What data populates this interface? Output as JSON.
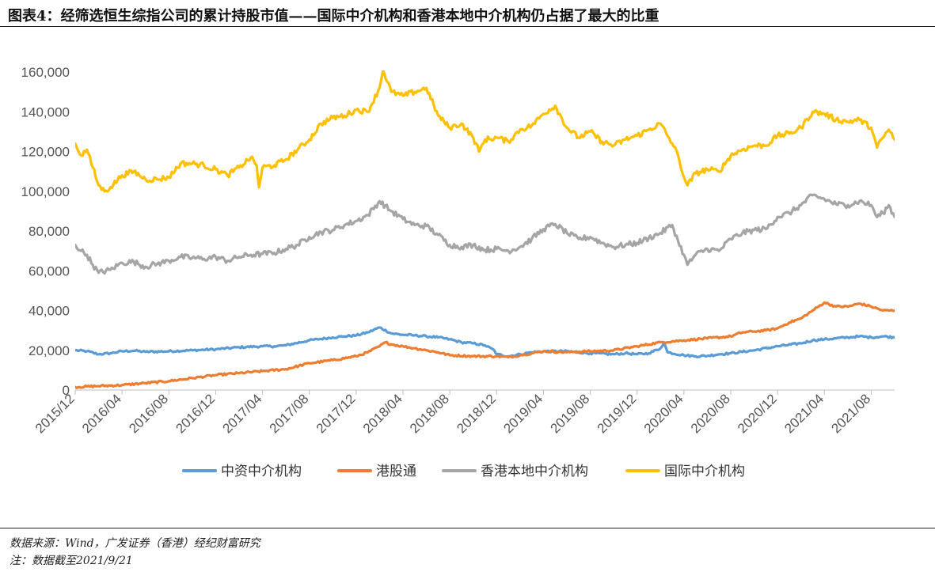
{
  "header": {
    "title": "图表4：经筛选恒生综指公司的累计持股市值——国际中介机构和香港本地中介机构仍占据了最大的比重"
  },
  "footer": {
    "source": "数据来源：Wind，广发证券（香港）经纪财富研究",
    "date_note": "注：数据截至2021/9/21"
  },
  "colors": {
    "chinese_brokers": "#5B9BD5",
    "stock_connect": "#ED7D31",
    "hk_local_brokers": "#A5A5A5",
    "international_brokers": "#FFC000"
  },
  "chart_data": {
    "type": "line",
    "title": "",
    "xlabel": "",
    "ylabel": "",
    "ylim": [
      0,
      160000
    ],
    "yticks": [
      0,
      20000,
      40000,
      60000,
      80000,
      100000,
      120000,
      140000,
      160000
    ],
    "ytick_labels": [
      "0",
      "20,000",
      "40,000",
      "60,000",
      "80,000",
      "100,000",
      "120,000",
      "140,000",
      "160,000"
    ],
    "xlim": [
      0,
      70
    ],
    "xticks": [
      0,
      4,
      8,
      12,
      16,
      20,
      24,
      28,
      32,
      36,
      40,
      44,
      48,
      52,
      56,
      60,
      64,
      68
    ],
    "xtick_labels": [
      "2015/12",
      "2016/04",
      "2016/08",
      "2016/12",
      "2017/04",
      "2017/08",
      "2017/12",
      "2018/04",
      "2018/08",
      "2018/12",
      "2019/04",
      "2019/08",
      "2019/12",
      "2020/04",
      "2020/08",
      "2020/12",
      "2021/04",
      "2021/08"
    ],
    "x_unit": "months since 2015/12",
    "legend_position": "bottom",
    "series": [
      {
        "name": "中资中介机构",
        "color": "#5B9BD5",
        "points": [
          [
            0,
            20000
          ],
          [
            1,
            19500
          ],
          [
            2,
            18000
          ],
          [
            3,
            18500
          ],
          [
            4,
            19500
          ],
          [
            5,
            19800
          ],
          [
            6,
            19200
          ],
          [
            8,
            19500
          ],
          [
            10,
            20000
          ],
          [
            12,
            20500
          ],
          [
            14,
            21500
          ],
          [
            16,
            22000
          ],
          [
            17,
            22000
          ],
          [
            18,
            22500
          ],
          [
            20,
            25000
          ],
          [
            22,
            26500
          ],
          [
            23,
            27000
          ],
          [
            24,
            27500
          ],
          [
            25,
            29000
          ],
          [
            26,
            31500
          ],
          [
            27,
            28500
          ],
          [
            28,
            27800
          ],
          [
            29,
            27500
          ],
          [
            30,
            27000
          ],
          [
            31,
            26500
          ],
          [
            32,
            25500
          ],
          [
            33,
            24000
          ],
          [
            34,
            23500
          ],
          [
            35,
            22500
          ],
          [
            35.8,
            20000
          ],
          [
            36,
            18000
          ],
          [
            37,
            17000
          ],
          [
            38,
            18000
          ],
          [
            39,
            19000
          ],
          [
            40,
            19500
          ],
          [
            42,
            19500
          ],
          [
            44,
            18500
          ],
          [
            46,
            18000
          ],
          [
            47,
            18500
          ],
          [
            48,
            18000
          ],
          [
            49,
            18500
          ],
          [
            50,
            21000
          ],
          [
            50.3,
            24000
          ],
          [
            50.6,
            19000
          ],
          [
            52,
            17500
          ],
          [
            53,
            17000
          ],
          [
            54,
            17200
          ],
          [
            55,
            18000
          ],
          [
            56,
            18500
          ],
          [
            58,
            20000
          ],
          [
            60,
            22000
          ],
          [
            62,
            23500
          ],
          [
            63,
            25000
          ],
          [
            64,
            25500
          ],
          [
            66,
            26500
          ],
          [
            67,
            27000
          ],
          [
            68,
            26500
          ],
          [
            69,
            27000
          ],
          [
            70,
            26500
          ]
        ]
      },
      {
        "name": "港股通",
        "color": "#ED7D31",
        "points": [
          [
            0,
            1500
          ],
          [
            2,
            2000
          ],
          [
            4,
            2500
          ],
          [
            6,
            3500
          ],
          [
            8,
            4500
          ],
          [
            10,
            6000
          ],
          [
            12,
            7500
          ],
          [
            14,
            8500
          ],
          [
            16,
            9500
          ],
          [
            18,
            10500
          ],
          [
            20,
            13500
          ],
          [
            22,
            15000
          ],
          [
            24,
            17000
          ],
          [
            25,
            19000
          ],
          [
            26,
            22000
          ],
          [
            26.5,
            24000
          ],
          [
            27,
            23000
          ],
          [
            28,
            22000
          ],
          [
            29,
            21000
          ],
          [
            30,
            20000
          ],
          [
            31,
            19000
          ],
          [
            32,
            17500
          ],
          [
            34,
            17000
          ],
          [
            36,
            17000
          ],
          [
            37,
            16500
          ],
          [
            38,
            17500
          ],
          [
            40,
            19500
          ],
          [
            42,
            19000
          ],
          [
            44,
            19500
          ],
          [
            46,
            20000
          ],
          [
            48,
            22000
          ],
          [
            50,
            24000
          ],
          [
            52,
            25000
          ],
          [
            54,
            26000
          ],
          [
            56,
            27000
          ],
          [
            57,
            29000
          ],
          [
            58,
            29500
          ],
          [
            59,
            30000
          ],
          [
            60,
            31000
          ],
          [
            61,
            34000
          ],
          [
            62,
            36000
          ],
          [
            63,
            40000
          ],
          [
            64,
            44000
          ],
          [
            65,
            42000
          ],
          [
            66,
            42000
          ],
          [
            67,
            43500
          ],
          [
            68,
            42000
          ],
          [
            69,
            40000
          ],
          [
            70,
            40000
          ]
        ]
      },
      {
        "name": "香港本地中介机构",
        "color": "#A5A5A5",
        "points": [
          [
            0,
            73000
          ],
          [
            0.5,
            70000
          ],
          [
            1,
            68000
          ],
          [
            1.5,
            63000
          ],
          [
            2,
            59000
          ],
          [
            3,
            60500
          ],
          [
            4,
            64000
          ],
          [
            5,
            64500
          ],
          [
            6,
            62000
          ],
          [
            7,
            63500
          ],
          [
            8,
            65000
          ],
          [
            9,
            67000
          ],
          [
            10,
            66500
          ],
          [
            11,
            66000
          ],
          [
            12,
            67000
          ],
          [
            13,
            65000
          ],
          [
            14,
            67000
          ],
          [
            15,
            68000
          ],
          [
            16,
            68500
          ],
          [
            17,
            69000
          ],
          [
            18,
            71000
          ],
          [
            19,
            73000
          ],
          [
            20,
            77000
          ],
          [
            21,
            79500
          ],
          [
            22,
            80500
          ],
          [
            23,
            83000
          ],
          [
            24,
            85000
          ],
          [
            25,
            88000
          ],
          [
            26,
            95000
          ],
          [
            27,
            90000
          ],
          [
            28,
            86000
          ],
          [
            29,
            83000
          ],
          [
            30,
            82500
          ],
          [
            31,
            78000
          ],
          [
            32,
            73000
          ],
          [
            33,
            72000
          ],
          [
            34,
            73000
          ],
          [
            35,
            70500
          ],
          [
            36,
            71000
          ],
          [
            37,
            70000
          ],
          [
            38,
            72000
          ],
          [
            39,
            76000
          ],
          [
            40,
            81000
          ],
          [
            41,
            83500
          ],
          [
            42,
            79000
          ],
          [
            43,
            76000
          ],
          [
            44,
            77000
          ],
          [
            45,
            74000
          ],
          [
            46,
            72000
          ],
          [
            47,
            73000
          ],
          [
            48,
            74000
          ],
          [
            49,
            76500
          ],
          [
            50,
            79000
          ],
          [
            51,
            83000
          ],
          [
            51.5,
            75000
          ],
          [
            52,
            68000
          ],
          [
            52.3,
            63000
          ],
          [
            53,
            68000
          ],
          [
            54,
            71000
          ],
          [
            55,
            70000
          ],
          [
            56,
            76000
          ],
          [
            57,
            79000
          ],
          [
            58,
            80500
          ],
          [
            59,
            81000
          ],
          [
            60,
            87000
          ],
          [
            61,
            89000
          ],
          [
            62,
            93000
          ],
          [
            63,
            98000
          ],
          [
            64,
            96000
          ],
          [
            65,
            93500
          ],
          [
            66,
            93000
          ],
          [
            67,
            95000
          ],
          [
            68,
            93000
          ],
          [
            68.5,
            87000
          ],
          [
            69,
            89000
          ],
          [
            69.5,
            93000
          ],
          [
            70,
            87000
          ]
        ]
      },
      {
        "name": "国际中介机构",
        "color": "#FFC000",
        "points": [
          [
            0,
            124000
          ],
          [
            0.5,
            118000
          ],
          [
            1,
            121000
          ],
          [
            1.5,
            112000
          ],
          [
            2,
            103000
          ],
          [
            2.5,
            100000
          ],
          [
            3,
            102000
          ],
          [
            4,
            108000
          ],
          [
            5,
            110000
          ],
          [
            6,
            106000
          ],
          [
            7,
            106000
          ],
          [
            8,
            107000
          ],
          [
            9,
            114000
          ],
          [
            10,
            114000
          ],
          [
            11,
            113000
          ],
          [
            12,
            111000
          ],
          [
            13,
            108000
          ],
          [
            14,
            112000
          ],
          [
            15,
            117000
          ],
          [
            15.5,
            113000
          ],
          [
            15.7,
            102000
          ],
          [
            16,
            112000
          ],
          [
            17,
            113000
          ],
          [
            18,
            116000
          ],
          [
            19,
            121000
          ],
          [
            20,
            126000
          ],
          [
            21,
            134000
          ],
          [
            22,
            137000
          ],
          [
            23,
            138000
          ],
          [
            24,
            141000
          ],
          [
            25,
            140000
          ],
          [
            26,
            152000
          ],
          [
            26.3,
            161000
          ],
          [
            27,
            150000
          ],
          [
            28,
            148000
          ],
          [
            29,
            150000
          ],
          [
            30,
            152000
          ],
          [
            31,
            138000
          ],
          [
            32,
            132000
          ],
          [
            33,
            134000
          ],
          [
            34,
            127000
          ],
          [
            34.5,
            120000
          ],
          [
            35,
            126000
          ],
          [
            36,
            127000
          ],
          [
            37,
            125000
          ],
          [
            38,
            131000
          ],
          [
            39,
            133000
          ],
          [
            40,
            139000
          ],
          [
            41,
            143000
          ],
          [
            42,
            132000
          ],
          [
            43,
            127000
          ],
          [
            44,
            130000
          ],
          [
            45,
            125000
          ],
          [
            46,
            123000
          ],
          [
            47,
            126000
          ],
          [
            48,
            128000
          ],
          [
            49,
            131000
          ],
          [
            50,
            134000
          ],
          [
            51,
            124000
          ],
          [
            51.5,
            118000
          ],
          [
            52,
            107000
          ],
          [
            52.3,
            103000
          ],
          [
            53,
            109000
          ],
          [
            54,
            111000
          ],
          [
            55,
            110000
          ],
          [
            56,
            118000
          ],
          [
            57,
            121000
          ],
          [
            58,
            123000
          ],
          [
            59,
            123000
          ],
          [
            60,
            128000
          ],
          [
            61,
            129000
          ],
          [
            62,
            132000
          ],
          [
            63,
            140000
          ],
          [
            64,
            139000
          ],
          [
            65,
            136000
          ],
          [
            66,
            135000
          ],
          [
            67,
            136000
          ],
          [
            68,
            132000
          ],
          [
            68.5,
            122000
          ],
          [
            69,
            127000
          ],
          [
            69.5,
            131000
          ],
          [
            70,
            126000
          ]
        ]
      }
    ]
  }
}
